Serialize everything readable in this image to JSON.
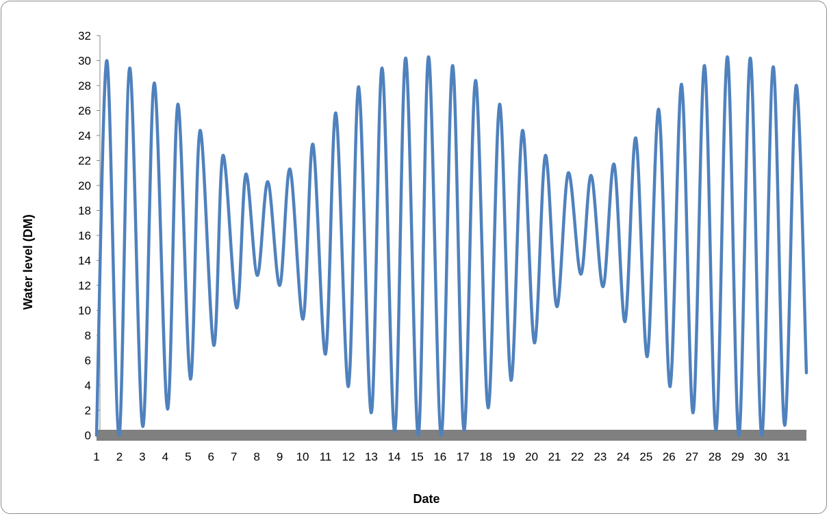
{
  "chart_data": {
    "type": "line",
    "title": "",
    "xlabel": "Date",
    "ylabel": "Water level  (DM)",
    "x_tick_labels": [
      "1",
      "2",
      "3",
      "4",
      "5",
      "6",
      "7",
      "8",
      "9",
      "10",
      "11",
      "12",
      "13",
      "14",
      "15",
      "16",
      "17",
      "18",
      "19",
      "20",
      "21",
      "22",
      "23",
      "24",
      "25",
      "26",
      "27",
      "28",
      "29",
      "30",
      "31"
    ],
    "y_tick_labels": [
      "0",
      "2",
      "4",
      "6",
      "8",
      "10",
      "12",
      "14",
      "16",
      "18",
      "20",
      "22",
      "24",
      "26",
      "28",
      "30",
      "32"
    ],
    "xlim": [
      1,
      32
    ],
    "ylim": [
      0,
      32
    ],
    "grid": false,
    "legend": "none",
    "series": [
      {
        "color": "#4f81bd",
        "values": [
          [
            1.0,
            0.0
          ],
          [
            1.45,
            30.0
          ],
          [
            1.98,
            0.0
          ],
          [
            2.45,
            29.4
          ],
          [
            3.02,
            0.7
          ],
          [
            3.52,
            28.2
          ],
          [
            4.1,
            2.1
          ],
          [
            4.55,
            26.5
          ],
          [
            5.1,
            4.5
          ],
          [
            5.52,
            24.4
          ],
          [
            6.12,
            7.2
          ],
          [
            6.52,
            22.4
          ],
          [
            7.12,
            10.2
          ],
          [
            7.52,
            20.9
          ],
          [
            8.02,
            12.8
          ],
          [
            8.48,
            20.3
          ],
          [
            9.0,
            12.0
          ],
          [
            9.45,
            21.3
          ],
          [
            10.02,
            9.3
          ],
          [
            10.45,
            23.3
          ],
          [
            11.0,
            6.5
          ],
          [
            11.45,
            25.8
          ],
          [
            12.0,
            3.9
          ],
          [
            12.45,
            27.9
          ],
          [
            13.0,
            1.8
          ],
          [
            13.47,
            29.4
          ],
          [
            14.02,
            0.3
          ],
          [
            14.5,
            30.2
          ],
          [
            15.05,
            0.0
          ],
          [
            15.5,
            30.3
          ],
          [
            16.05,
            0.0
          ],
          [
            16.55,
            29.6
          ],
          [
            17.05,
            0.4
          ],
          [
            17.55,
            28.4
          ],
          [
            18.1,
            2.2
          ],
          [
            18.6,
            26.5
          ],
          [
            19.1,
            4.4
          ],
          [
            19.6,
            24.4
          ],
          [
            20.12,
            7.4
          ],
          [
            20.6,
            22.4
          ],
          [
            21.1,
            10.3
          ],
          [
            21.6,
            21.0
          ],
          [
            22.15,
            12.9
          ],
          [
            22.6,
            20.8
          ],
          [
            23.12,
            11.9
          ],
          [
            23.6,
            21.7
          ],
          [
            24.08,
            9.1
          ],
          [
            24.55,
            23.8
          ],
          [
            25.05,
            6.3
          ],
          [
            25.55,
            26.1
          ],
          [
            26.05,
            3.9
          ],
          [
            26.55,
            28.1
          ],
          [
            27.05,
            1.8
          ],
          [
            27.55,
            29.6
          ],
          [
            28.05,
            0.4
          ],
          [
            28.55,
            30.3
          ],
          [
            29.05,
            0.0
          ],
          [
            29.55,
            30.2
          ],
          [
            30.05,
            0.0
          ],
          [
            30.55,
            29.5
          ],
          [
            31.05,
            0.8
          ],
          [
            31.55,
            28.0
          ],
          [
            32.0,
            5.0
          ]
        ]
      }
    ]
  }
}
